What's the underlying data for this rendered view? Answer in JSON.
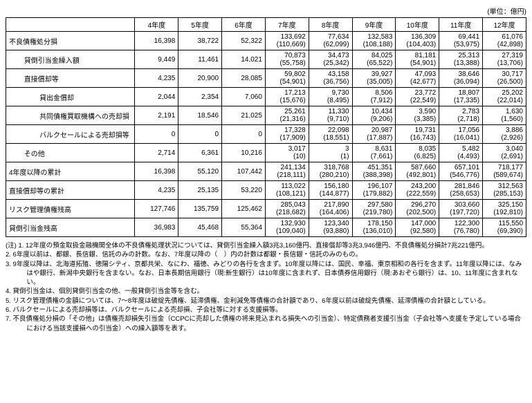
{
  "unit_label": "(単位：億円)",
  "headers": [
    "",
    "4年度",
    "5年度",
    "6年度",
    "7年度",
    "8年度",
    "9年度",
    "10年度",
    "11年度",
    "12年度"
  ],
  "rows": [
    {
      "label": "不良債権処分損",
      "indent": 0,
      "y4": "16,398",
      "y5": "38,722",
      "y6": "52,322",
      "y7": "133,692",
      "y7p": "(110,669)",
      "y8": "77,634",
      "y8p": "(62,099)",
      "y9": "132,583",
      "y9p": "(108,188)",
      "y10": "136,309",
      "y10p": "(104,403)",
      "y11": "69,441",
      "y11p": "(53,975)",
      "y12": "61,076",
      "y12p": "(42,898)"
    },
    {
      "label": "貸倒引当金繰入額",
      "indent": 1,
      "y4": "9,449",
      "y5": "11,461",
      "y6": "14,021",
      "y7": "70,873",
      "y7p": "(55,758)",
      "y8": "34,473",
      "y8p": "(25,342)",
      "y9": "84,025",
      "y9p": "(65,522)",
      "y10": "81,181",
      "y10p": "(54,901)",
      "y11": "25,313",
      "y11p": "(13,388)",
      "y12": "27,319",
      "y12p": "(13,706)"
    },
    {
      "label": "直接償却等",
      "indent": 1,
      "y4": "4,235",
      "y5": "20,900",
      "y6": "28,085",
      "y7": "59,802",
      "y7p": "(54,901)",
      "y8": "43,158",
      "y8p": "(36,756)",
      "y9": "39,927",
      "y9p": "(35,005)",
      "y10": "47,093",
      "y10p": "(42,677)",
      "y11": "38,646",
      "y11p": "(36,094)",
      "y12": "30,717",
      "y12p": "(26,500)"
    },
    {
      "label": "貸出金償却",
      "indent": 2,
      "y4": "2,044",
      "y5": "2,354",
      "y6": "7,060",
      "y7": "17,213",
      "y7p": "(15,676)",
      "y8": "9,730",
      "y8p": "(8,495)",
      "y9": "8,506",
      "y9p": "(7,912)",
      "y10": "23,772",
      "y10p": "(22,549)",
      "y11": "18,807",
      "y11p": "(17,335)",
      "y12": "25,202",
      "y12p": "(22,014)"
    },
    {
      "label": "共同債権買取機構への売却損",
      "indent": 2,
      "y4": "2,191",
      "y5": "18,546",
      "y6": "21,025",
      "y7": "25,261",
      "y7p": "(21,316)",
      "y8": "11,330",
      "y8p": "(9,710)",
      "y9": "10,434",
      "y9p": "(9,206)",
      "y10": "3,590",
      "y10p": "(3,385)",
      "y11": "2,783",
      "y11p": "(2,718)",
      "y12": "1,630",
      "y12p": "(1,560)"
    },
    {
      "label": "バルクセールによる売却損等",
      "indent": 2,
      "y4": "0",
      "y5": "0",
      "y6": "0",
      "y7": "17,328",
      "y7p": "(17,909)",
      "y8": "22,098",
      "y8p": "(18,551)",
      "y9": "20,987",
      "y9p": "(17,887)",
      "y10": "19,731",
      "y10p": "(16,743)",
      "y11": "17,056",
      "y11p": "(16,041)",
      "y12": "3,886",
      "y12p": "(2,926)"
    },
    {
      "label": "その他",
      "indent": 1,
      "y4": "2,714",
      "y5": "6,361",
      "y6": "10,216",
      "y7": "3,017",
      "y7p": "(10)",
      "y8": "3",
      "y8p": "(1)",
      "y9": "8,631",
      "y9p": "(7,661)",
      "y10": "8,035",
      "y10p": "(6,825)",
      "y11": "5,482",
      "y11p": "(4,493)",
      "y12": "3,040",
      "y12p": "(2,691)"
    },
    {
      "label": "4年度以降の累計",
      "indent": -1,
      "y4": "16,398",
      "y5": "55,120",
      "y6": "107,442",
      "y7": "241,134",
      "y7p": "(218,111)",
      "y8": "318,768",
      "y8p": "(280,210)",
      "y9": "451,351",
      "y9p": "(388,398)",
      "y10": "587,660",
      "y10p": "(492,801)",
      "y11": "657,101",
      "y11p": "(546,776)",
      "y12": "718,177",
      "y12p": "(589,674)"
    },
    {
      "label": "直接償却等の累計",
      "indent": -1,
      "y4": "4,235",
      "y5": "25,135",
      "y6": "53,220",
      "y7": "113,022",
      "y7p": "(108,121)",
      "y8": "156,180",
      "y8p": "(144,877)",
      "y9": "196,107",
      "y9p": "(179,882)",
      "y10": "243,200",
      "y10p": "(222,559)",
      "y11": "281,846",
      "y11p": "(258,653)",
      "y12": "312,563",
      "y12p": "(285,153)"
    },
    {
      "label": "リスク管理債権残高",
      "indent": -1,
      "y4": "127,746",
      "y5": "135,759",
      "y6": "125,462",
      "y7": "285,043",
      "y7p": "(218,682)",
      "y8": "217,890",
      "y8p": "(164,406)",
      "y9": "297,580",
      "y9p": "(219,780)",
      "y10": "296,270",
      "y10p": "(202,500)",
      "y11": "303,660",
      "y11p": "(197,720)",
      "y12": "325,150",
      "y12p": "(192,810)"
    },
    {
      "label": "貸倒引当金残高",
      "indent": -1,
      "y4": "36,983",
      "y5": "45,468",
      "y6": "55,364",
      "y7": "132,930",
      "y7p": "(109,040)",
      "y8": "123,340",
      "y8p": "(93,880)",
      "y9": "178,150",
      "y9p": "(136,010)",
      "y10": "147,000",
      "y10p": "(92,580)",
      "y11": "122,300",
      "y11p": "(76,780)",
      "y12": "115,550",
      "y12p": "(69,390)"
    }
  ],
  "notes_label": "(注)",
  "notes": [
    "1. 12年度の預金取扱金融機関全体の不良債権処理状況については、貸倒引当金繰入額3兆3,160億円、直接償却等3兆3,946億円、不良債権処分損計7兆221億円。",
    "2. 6年度以前は、都銀、長信銀、信託のみの計数。なお、7年度以降の（　）内の計数は都銀・長信銀・信託のみのもの。",
    "3. 9年度以降は、北海道拓殖、徳陽シティ、京都共栄、なにわ、福徳、みどりの各行を含まず。10年度以降には、国民、幸福、東京相和の各行を含まず。11年度以降には、なみはや銀行、新潟中央銀行を含まない。なお、日本長期信用銀行（現:新生銀行）は10年度に含まれず、日本債券信用銀行（現:あおぞら銀行）は、10、11年度に含まれない。",
    "4. 貸倒引当金は、個別貸倒引当金の他、一般貸倒引当金等を含む。",
    "5. リスク管理債権の金額については、7～8年度は破綻先債権、延滞債権、金利減免等債権の合計額であり、6年度以前は破綻先債権、延滞債権の合計額としている。",
    "6. バルクセールによる売却損等は、バルクセールによる売却損、子会社等に対する支援損等。",
    "7. 不良債権処分損の「その他」は債権売却損失引当金（CCPCに売却した債権の将来見込まれる損失への引当金）、特定債務者支援引当金（子会社等へ支援を予定している場合における当該支援損への引当金）への繰入額等を表す。"
  ]
}
